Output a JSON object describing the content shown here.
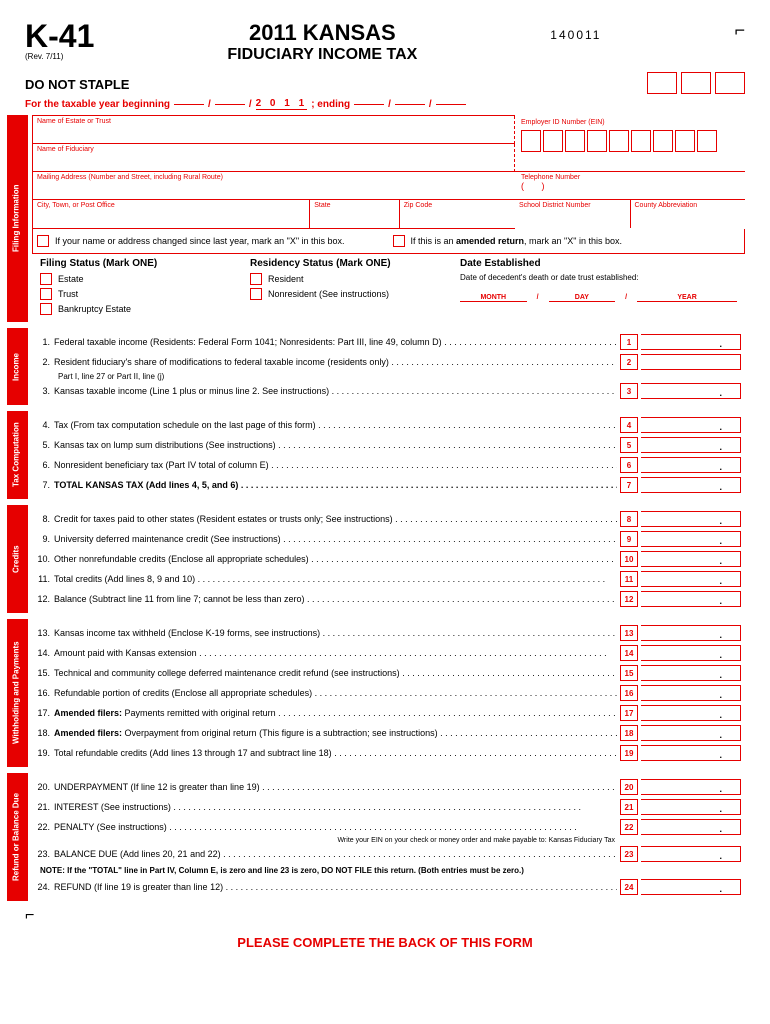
{
  "header": {
    "form_code": "K-41",
    "revision": "(Rev. 7/11)",
    "title_main": "2011 KANSAS",
    "title_sub": "FIDUCIARY INCOME TAX",
    "form_number": "140011",
    "no_staple": "DO NOT STAPLE",
    "year_line_prefix": "For the taxable year beginning",
    "year": "2 0 1 1",
    "year_line_suffix": "; ending"
  },
  "filing_info": {
    "tab": "Filing Information",
    "name_estate": "Name of Estate or Trust",
    "name_fiduciary": "Name of Fiduciary",
    "mailing": "Mailing Address (Number and Street, including Rural Route)",
    "city": "City, Town, or Post Office",
    "state": "State",
    "zip": "Zip Code",
    "ein_label": "Employer ID Number (EIN)",
    "phone": "Telephone Number",
    "school": "School District Number",
    "county": "County Abbreviation",
    "check_address": "If your name or address changed since last year, mark an \"X\" in this box.",
    "check_amended": "If this is an amended return, mark an \"X\" in this box.",
    "filing_status_head": "Filing Status (Mark ONE)",
    "filing_opts": [
      "Estate",
      "Trust",
      "Bankruptcy Estate"
    ],
    "residency_head": "Residency Status (Mark ONE)",
    "residency_opts": [
      "Resident",
      "Nonresident (See instructions)"
    ],
    "date_est_head": "Date Established",
    "date_est_sub": "Date of decedent's death or date trust established:",
    "date_labels": [
      "MONTH",
      "DAY",
      "YEAR"
    ]
  },
  "sections": {
    "income": {
      "tab": "Income",
      "lines": [
        {
          "n": "1",
          "t": "Federal taxable income  (Residents: Federal Form 1041; Nonresidents: Part III, line 49, column D)",
          "dot": true
        },
        {
          "n": "2",
          "t": "Resident fiduciary's share of modifications to federal taxable income (residents only)",
          "sub": "Part I, line 27 or Part II, line (j)",
          "dot": true,
          "nodot_amount": true
        },
        {
          "n": "3",
          "t": "Kansas taxable income (Line 1 plus or minus line 2. See instructions)",
          "dot": true
        }
      ]
    },
    "tax_comp": {
      "tab": "Tax Computation",
      "lines": [
        {
          "n": "4",
          "t": "Tax  (From tax computation schedule on the last page of this form)",
          "dot": true
        },
        {
          "n": "5",
          "t": "Kansas tax on lump sum distributions (See instructions)",
          "dot": true
        },
        {
          "n": "6",
          "t": "Nonresident beneficiary tax (Part IV total of column E)",
          "dot": true
        },
        {
          "n": "7",
          "t": "TOTAL KANSAS TAX (Add lines 4, 5, and 6)",
          "bold": true,
          "dot": true
        }
      ]
    },
    "credits": {
      "tab": "Credits",
      "lines": [
        {
          "n": "8",
          "t": "Credit for taxes paid to other states (Resident estates or trusts only; See instructions)",
          "dot": true
        },
        {
          "n": "9",
          "t": "University deferred maintenance credit (See instructions)",
          "dot": true
        },
        {
          "n": "10",
          "t": "Other nonrefundable credits (Enclose all appropriate schedules)",
          "dot": true
        },
        {
          "n": "11",
          "t": "Total credits (Add lines 8, 9 and 10)",
          "dot": true
        },
        {
          "n": "12",
          "t": "Balance (Subtract line 11 from line 7; cannot be less than zero)",
          "dot": true
        }
      ]
    },
    "withholding": {
      "tab": "Withholding and Payments",
      "lines": [
        {
          "n": "13",
          "t": "Kansas income tax withheld (Enclose K-19 forms, see instructions)",
          "dot": true
        },
        {
          "n": "14",
          "t": "Amount paid with Kansas extension",
          "dot": true
        },
        {
          "n": "15",
          "t": "Technical and community college deferred maintenance credit refund (see instructions)",
          "dot": true
        },
        {
          "n": "16",
          "t": "Refundable portion of credits (Enclose all appropriate schedules)",
          "dot": true
        },
        {
          "n": "17",
          "t": "Amended filers:  Payments remitted with original return",
          "boldpre": true,
          "dot": true
        },
        {
          "n": "18",
          "t": "Amended filers:  Overpayment from original return (This figure is a subtraction; see instructions)",
          "boldpre": true,
          "dot": true
        },
        {
          "n": "19",
          "t": "Total refundable credits (Add lines 13 through 17 and subtract line 18)",
          "dot": true
        }
      ]
    },
    "refund": {
      "tab": "Refund or Balance Due",
      "lines": [
        {
          "n": "20",
          "t": "UNDERPAYMENT (If line 12 is greater than line 19)",
          "dot": true
        },
        {
          "n": "21",
          "t": "INTEREST (See instructions)",
          "dot": true
        },
        {
          "n": "22",
          "t": "PENALTY (See instructions)",
          "dot": true
        },
        {
          "n": "23",
          "t": "BALANCE DUE (Add lines 20, 21 and 22)",
          "dot": true,
          "prenote": "Write your EIN on your check or money order\nand make payable to:  Kansas Fiduciary Tax"
        },
        {
          "n": "24",
          "t": "REFUND (If line 19 is greater than line 12)",
          "dot": true
        }
      ],
      "note": "NOTE:  If the \"TOTAL\" line in Part IV, Column E, is zero and line 23 is zero, DO NOT FILE this return. (Both entries must be zero.)"
    }
  },
  "footer": "PLEASE COMPLETE THE BACK OF THIS FORM",
  "colors": {
    "red": "#e60000",
    "black": "#000000",
    "white": "#ffffff"
  }
}
